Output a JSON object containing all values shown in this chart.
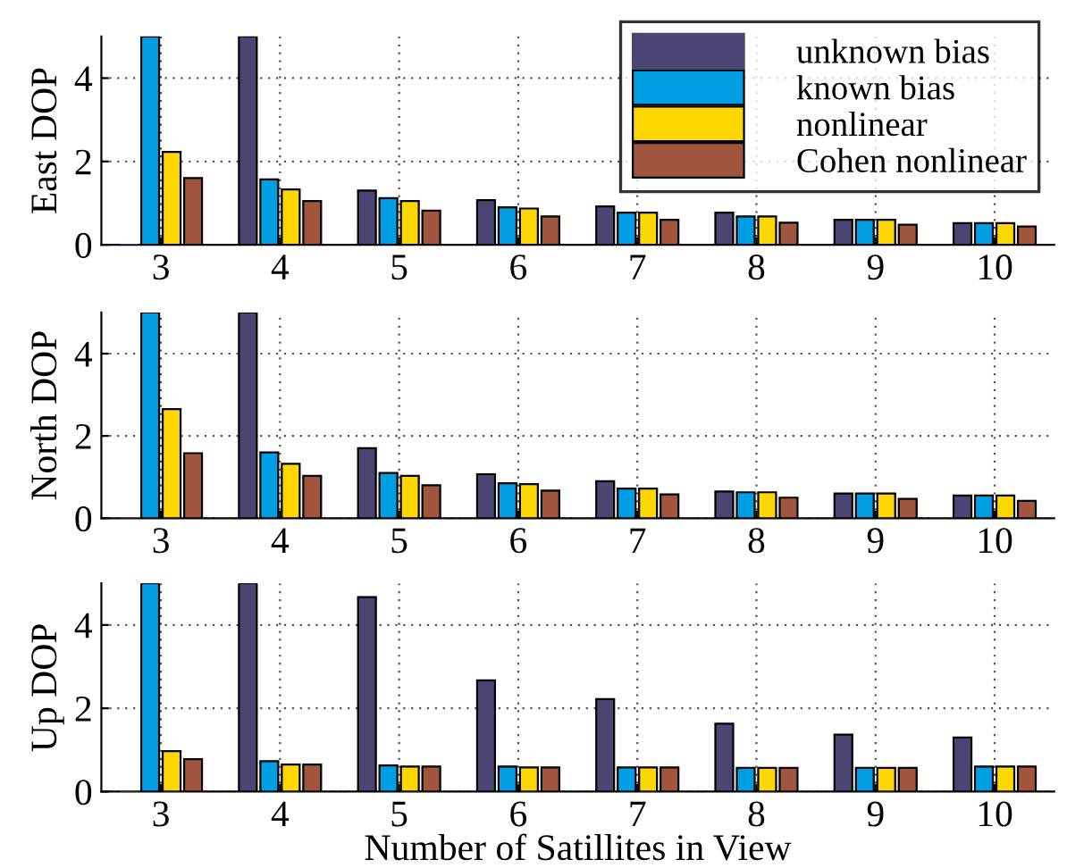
{
  "chart_data": [
    {
      "type": "bar",
      "ylabel": "East DOP",
      "categories": [
        "3",
        "4",
        "5",
        "6",
        "7",
        "8",
        "9",
        "10"
      ],
      "ylim": [
        0,
        5
      ],
      "yticks": [
        0,
        2,
        4
      ],
      "grid": true,
      "legend": "top right",
      "series": [
        {
          "name": "unknown bias",
          "color": "#4b4574",
          "values": [
            0,
            5,
            1.3,
            1.07,
            0.92,
            0.77,
            0.6,
            0.52
          ]
        },
        {
          "name": "known bias",
          "color": "#009fe3",
          "values": [
            5,
            1.57,
            1.12,
            0.9,
            0.77,
            0.68,
            0.6,
            0.52
          ]
        },
        {
          "name": "nonlinear",
          "color": "#ffd700",
          "values": [
            2.23,
            1.33,
            1.05,
            0.87,
            0.77,
            0.68,
            0.6,
            0.52
          ]
        },
        {
          "name": "Cohen nonlinear",
          "color": "#a0553f",
          "values": [
            1.6,
            1.05,
            0.82,
            0.68,
            0.6,
            0.53,
            0.48,
            0.44
          ]
        }
      ]
    },
    {
      "type": "bar",
      "ylabel": "North DOP",
      "categories": [
        "3",
        "4",
        "5",
        "6",
        "7",
        "8",
        "9",
        "10"
      ],
      "ylim": [
        0,
        5
      ],
      "yticks": [
        0,
        2,
        4
      ],
      "grid": true,
      "series": [
        {
          "color": "#4b4574",
          "values": [
            0,
            5,
            1.7,
            1.07,
            0.9,
            0.65,
            0.6,
            0.55
          ]
        },
        {
          "color": "#009fe3",
          "values": [
            5,
            1.6,
            1.1,
            0.85,
            0.72,
            0.63,
            0.6,
            0.55
          ]
        },
        {
          "color": "#ffd700",
          "values": [
            2.65,
            1.32,
            1.03,
            0.83,
            0.72,
            0.63,
            0.6,
            0.55
          ]
        },
        {
          "color": "#a0553f",
          "values": [
            1.58,
            1.03,
            0.8,
            0.67,
            0.58,
            0.5,
            0.47,
            0.42
          ]
        }
      ]
    },
    {
      "type": "bar",
      "ylabel": "Up DOP",
      "xlabel": "Number of Satillites in View",
      "categories": [
        "3",
        "4",
        "5",
        "6",
        "7",
        "8",
        "9",
        "10"
      ],
      "ylim": [
        0,
        5
      ],
      "yticks": [
        0,
        2,
        4
      ],
      "grid": true,
      "series": [
        {
          "color": "#4b4574",
          "values": [
            0,
            5,
            4.67,
            2.67,
            2.22,
            1.63,
            1.37,
            1.3
          ]
        },
        {
          "color": "#009fe3",
          "values": [
            5,
            0.73,
            0.63,
            0.6,
            0.58,
            0.57,
            0.57,
            0.6
          ]
        },
        {
          "color": "#ffd700",
          "values": [
            0.97,
            0.65,
            0.6,
            0.58,
            0.58,
            0.57,
            0.57,
            0.6
          ]
        },
        {
          "color": "#a0553f",
          "values": [
            0.78,
            0.65,
            0.6,
            0.58,
            0.58,
            0.57,
            0.57,
            0.6
          ]
        }
      ]
    }
  ]
}
